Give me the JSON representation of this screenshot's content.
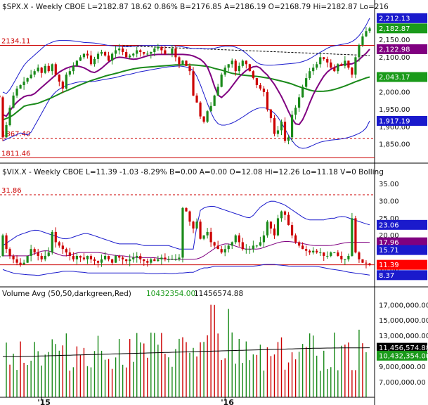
{
  "chart_data": [
    {
      "type": "candlestick",
      "panel": "spx",
      "header": "$SPX.X - Weekly  CBOE  L=2182.87  18.62  0.86%  B=2176.85  A=2186.19  O=2168.79  Hi=2182.87  Lo=216",
      "y_range": [
        1800,
        2230
      ],
      "y_ticks": [
        "2,150.00",
        "2,100.00",
        "2,050.00",
        "2,000.00",
        "1,950.00",
        "1,900.00",
        "1,850.00"
      ],
      "y_tick_values": [
        2150,
        2100,
        2050,
        2000,
        1950,
        1900,
        1850
      ],
      "reference_lines": [
        {
          "label": "2134.11",
          "value": 2134.11,
          "style": "solid",
          "color": "#cc0000"
        },
        {
          "label": "1867.40",
          "value": 1867.4,
          "style": "dashed",
          "color": "#cc0000"
        },
        {
          "label": "1811.46",
          "value": 1811.46,
          "style": "solid",
          "color": "#cc0000"
        }
      ],
      "trendline": {
        "from_week": 34,
        "from_value": 2133,
        "to_week": 104,
        "to_value": 2105,
        "style": "dashed",
        "color": "#000000"
      },
      "value_tags": [
        {
          "label": "2,212.13",
          "value": 2212.13,
          "color": "#1a1acc"
        },
        {
          "label": "2,182.87",
          "value": 2182.87,
          "color": "#1a9a1a"
        },
        {
          "label": "2,122.98",
          "value": 2122.98,
          "color": "#800080"
        },
        {
          "label": "2,043.17",
          "value": 2043.17,
          "color": "#1a9a1a"
        },
        {
          "label": "1,917.19",
          "value": 1917.19,
          "color": "#1a1acc"
        }
      ],
      "closes": [
        1950,
        1965,
        1960,
        1975,
        1990,
        1985,
        1870,
        1905,
        1955,
        1990,
        2010,
        2020,
        2030,
        2040,
        2050,
        2060,
        2070,
        2055,
        2075,
        2060,
        2080,
        2050,
        2030,
        2010,
        2050,
        2060,
        2075,
        2090,
        2100,
        2110,
        2105,
        2080,
        2095,
        2110,
        2115,
        2105,
        2090,
        2110,
        2120,
        2125,
        2115,
        2100,
        2105,
        2110,
        2120,
        2115,
        2110,
        2110,
        2115,
        2125,
        2130,
        2120,
        2110,
        2110,
        2125,
        2100,
        2080,
        2090,
        2075,
        2060,
        1990,
        1970,
        1930,
        1915,
        1945,
        1960,
        1990,
        2015,
        2050,
        2070,
        2080,
        2090,
        2060,
        2075,
        2090,
        2080,
        2060,
        2040,
        2020,
        2010,
        2000,
        1950,
        1925,
        1880,
        1890,
        1915,
        1860,
        1870,
        1935,
        1955,
        1985,
        2015,
        2040,
        2060,
        2070,
        2080,
        2100,
        2095,
        2085,
        2070,
        2060,
        2080,
        2075,
        2090,
        2070,
        2050,
        2100,
        2135,
        2160,
        2175,
        2182.87
      ],
      "sma_green": {
        "name": "",
        "color": "#1a8a1a",
        "values": [
          1920,
          1925,
          1930,
          1940,
          1950,
          1960,
          1963,
          1965,
          1967,
          1972,
          1977,
          1982,
          1988,
          1994,
          2000,
          2005,
          2010,
          2016,
          2021,
          2026,
          2031,
          2035,
          2039,
          2043,
          2047,
          2050,
          2053,
          2056,
          2060,
          2063,
          2066,
          2068,
          2070,
          2071,
          2072,
          2073,
          2074,
          2075,
          2076,
          2077,
          2078,
          2078,
          2078,
          2078,
          2078,
          2077,
          2076,
          2074,
          2072,
          2068,
          2065,
          2062,
          2058,
          2054,
          2052,
          2050,
          2048,
          2047,
          2046,
          2045,
          2043,
          2041,
          2039,
          2036,
          2033,
          2030,
          2027,
          2023,
          2018,
          2014,
          2010,
          2006,
          2003,
          2002,
          2002,
          2003,
          2005,
          2008,
          2012,
          2016,
          2021,
          2026,
          2031,
          2035,
          2040,
          2043.17
        ]
      },
      "sma_purple": {
        "name": "",
        "color": "#800080",
        "values": [
          1935,
          1930,
          1950,
          1965,
          1975,
          1985,
          1990,
          1990,
          1995,
          2005,
          2015,
          2025,
          2035,
          2045,
          2055,
          2062,
          2068,
          2072,
          2075,
          2075,
          2072,
          2068,
          2060,
          2055,
          2060,
          2068,
          2078,
          2088,
          2095,
          2100,
          2100,
          2098,
          2096,
          2094,
          2095,
          2098,
          2102,
          2105,
          2107,
          2108,
          2108,
          2108,
          2108,
          2108,
          2108,
          2108,
          2108,
          2107,
          2105,
          2100,
          2095,
          2085,
          2070,
          2040,
          2005,
          1980,
          1990,
          2000,
          2015,
          2030,
          2045,
          2055,
          2065,
          2070,
          2075,
          2072,
          2060,
          2050,
          2035,
          2020,
          2000,
          1980,
          1955,
          1930,
          1910,
          1905,
          1920,
          1945,
          1975,
          2000,
          2020,
          2040,
          2055,
          2065,
          2070,
          2075,
          2078,
          2080,
          2080,
          2082,
          2090,
          2100,
          2110,
          2122.98
        ]
      },
      "bb_upper": {
        "name": "",
        "color": "#1a1acc",
        "values": [
          2000,
          1995,
          2010,
          2030,
          2050,
          2070,
          2085,
          2095,
          2105,
          2115,
          2125,
          2135,
          2140,
          2145,
          2148,
          2148,
          2148,
          2148,
          2147,
          2146,
          2144,
          2142,
          2142,
          2141,
          2140,
          2138,
          2136,
          2134,
          2133,
          2132,
          2131,
          2130,
          2130,
          2131,
          2132,
          2133,
          2134,
          2134,
          2134,
          2134,
          2134,
          2134,
          2134,
          2134,
          2133,
          2132,
          2130,
          2128,
          2126,
          2125,
          2125,
          2125,
          2124,
          2124,
          2125,
          2128,
          2130,
          2132,
          2132,
          2131,
          2128,
          2122,
          2115,
          2105,
          2095,
          2085,
          2080,
          2078,
          2077,
          2077,
          2078,
          2079,
          2080,
          2081,
          2082,
          2083,
          2085,
          2088,
          2092,
          2098,
          2105,
          2112,
          2118,
          2125,
          2130,
          2133,
          2135,
          2137,
          2139,
          2142,
          2148,
          2158,
          2172,
          2190,
          2212.13
        ]
      },
      "bb_lower": {
        "name": "",
        "color": "#1a1acc",
        "values": [
          1860,
          1865,
          1870,
          1875,
          1880,
          1885,
          1875,
          1880,
          1900,
          1920,
          1940,
          1960,
          1980,
          1995,
          2005,
          2012,
          2018,
          2022,
          2025,
          2028,
          2030,
          2030,
          2030,
          2030,
          2032,
          2034,
          2036,
          2038,
          2040,
          2042,
          2045,
          2048,
          2050,
          2052,
          2055,
          2058,
          2060,
          2062,
          2064,
          2066,
          2068,
          2070,
          2072,
          2073,
          2074,
          2075,
          2074,
          2072,
          2068,
          2060,
          2040,
          2010,
          1980,
          1950,
          1925,
          1910,
          1905,
          1905,
          1908,
          1912,
          1918,
          1925,
          1932,
          1940,
          1947,
          1952,
          1955,
          1955,
          1952,
          1945,
          1935,
          1920,
          1900,
          1880,
          1862,
          1848,
          1840,
          1838,
          1840,
          1845,
          1850,
          1855,
          1858,
          1860,
          1862,
          1863,
          1864,
          1866,
          1868,
          1871,
          1875,
          1880,
          1885,
          1895,
          1917.19
        ]
      }
    },
    {
      "type": "candlestick",
      "panel": "vix",
      "header": "$VIX.X - Weekly  CBOE  L=11.39  -1.03  -8.29%  B=0.00  A=0.00  O=12.08  Hi=12.26  Lo=11.18  V=0  Bolling",
      "y_range": [
        7,
        37
      ],
      "y_ticks": [
        "35.00",
        "30.00",
        "25.00",
        "20.00",
        "15.00",
        "10.00"
      ],
      "y_tick_values": [
        35,
        30,
        25,
        20,
        15,
        10
      ],
      "reference_lines": [
        {
          "label": "31.86",
          "value": 31.86,
          "style": "dashed",
          "color": "#cc0000"
        },
        {
          "label": "",
          "value": 11.39,
          "style": "solid",
          "color": "#cc0000"
        }
      ],
      "value_tags": [
        {
          "label": "23.06",
          "value": 23.06,
          "color": "#1a1acc"
        },
        {
          "label": "17.96",
          "value": 17.96,
          "color": "#800080"
        },
        {
          "label": "15.71",
          "value": 15.71,
          "color": "#1a1acc"
        },
        {
          "label": "11.39",
          "value": 11.39,
          "color": "#ff0000"
        },
        {
          "label": "8.37",
          "value": 8.37,
          "color": "#1a1acc"
        }
      ],
      "closes": [
        13,
        12.5,
        13,
        14,
        13.5,
        14,
        20,
        16,
        14,
        13,
        12,
        11.5,
        12,
        14,
        16,
        15,
        14,
        13,
        14,
        15,
        21,
        18,
        17,
        16,
        15,
        14,
        13,
        14,
        13.5,
        13,
        14,
        13,
        12.5,
        12,
        13,
        14,
        13,
        12,
        14,
        13.5,
        13,
        12.5,
        13,
        13.5,
        14,
        13,
        12.5,
        12,
        13,
        12.5,
        13,
        13.5,
        13,
        13,
        13,
        13,
        13.5,
        28,
        27,
        24,
        22,
        24,
        19,
        20,
        21,
        18,
        17,
        16,
        15,
        16,
        17,
        18,
        20,
        18,
        16,
        16,
        16,
        17,
        17,
        18,
        20,
        24,
        22,
        20,
        25,
        27,
        26,
        23,
        20,
        18,
        17,
        16,
        15.5,
        15,
        15.5,
        15,
        15,
        14,
        14,
        15,
        15,
        14,
        13,
        13,
        14,
        25,
        15,
        13,
        12,
        11.8,
        11.39
      ],
      "bb_upper": {
        "name": "",
        "color": "#1a1acc",
        "values": [
          17,
          18,
          19,
          20,
          20.5,
          21,
          21.5,
          21.5,
          21,
          20.5,
          20,
          19.5,
          19,
          19,
          19.5,
          20,
          20.5,
          20.5,
          20,
          19.5,
          19,
          18.5,
          18,
          17.5,
          17.5,
          17.5,
          17.5,
          17.5,
          17,
          17,
          17,
          17,
          17,
          17,
          16.5,
          16,
          16,
          16,
          16,
          27,
          28,
          28.5,
          28.5,
          28,
          27.5,
          27,
          26.5,
          26,
          25.5,
          25,
          26,
          28,
          29,
          30,
          30,
          29.5,
          29,
          28,
          27,
          26,
          25,
          24.5,
          24.5,
          24.5,
          24.5,
          25,
          25,
          25.5,
          25.5,
          25,
          24.5,
          24,
          23.5,
          23.06
        ]
      },
      "bb_lower": {
        "name": "",
        "color": "#1a1acc",
        "values": [
          10,
          9.5,
          9,
          8.8,
          8.6,
          8.5,
          8.4,
          8.3,
          8.5,
          8.8,
          9,
          9.2,
          9.5,
          9.5,
          9.5,
          9.3,
          9.2,
          9,
          9,
          9,
          9,
          9,
          9,
          9,
          9,
          9,
          9,
          9,
          9,
          8.8,
          8.8,
          8.8,
          9,
          8.8,
          8.8,
          9,
          9,
          9.2,
          9.2,
          10,
          10.5,
          10.5,
          11,
          11,
          11,
          11,
          11,
          11,
          11,
          11,
          11,
          11.2,
          11.5,
          11.5,
          11.5,
          11.3,
          11.2,
          11,
          11,
          11,
          11,
          11,
          11,
          10.8,
          10.5,
          10.2,
          10,
          9.8,
          9.5,
          9.2,
          9,
          8.8,
          8.6,
          8.37
        ]
      },
      "bb_mid": {
        "name": "",
        "color": "#800080",
        "values": [
          14,
          14,
          14,
          14,
          14,
          14,
          14.5,
          15,
          15.5,
          15.5,
          15,
          14.5,
          14,
          14,
          14.5,
          15,
          15,
          15,
          15,
          15,
          14.8,
          14.5,
          14.2,
          14,
          14,
          13.8,
          13.6,
          13.5,
          13.5,
          13.5,
          13.5,
          13.3,
          13.2,
          13,
          13,
          13,
          13,
          13,
          13,
          13.2,
          14,
          15,
          16,
          17,
          17.5,
          17.5,
          17,
          16.5,
          16,
          16,
          16,
          16,
          16.5,
          17,
          17.5,
          18,
          18.2,
          18.2,
          18,
          17.8,
          17.5,
          17.2,
          17,
          17,
          17,
          17,
          17.2,
          17.5,
          17.8,
          18,
          18,
          18,
          18,
          17.96
        ]
      }
    },
    {
      "type": "bar",
      "panel": "volume",
      "header": "Volume Avg (50,50,darkgreen,Red)",
      "header_value_1": "10432354.00",
      "header_value_2": "11456574.88",
      "y_range": [
        5500000,
        17800000
      ],
      "y_ticks": [
        "17,000,000.00",
        "15,000,000.00",
        "13,000,000.00",
        "11,000,000.00",
        "9,000,000.00",
        "7,000,000.00"
      ],
      "y_tick_values": [
        17000000,
        15000000,
        13000000,
        11000000,
        9000000,
        7000000
      ],
      "value_tags": [
        {
          "label": "11,456,574.88",
          "value": 11456574.88,
          "color": "#000000"
        },
        {
          "label": "10,432,354.00",
          "value": 10432354,
          "color": "#1a9a1a"
        }
      ],
      "avg_line": {
        "name": "",
        "color": "#000000",
        "values": [
          10300000,
          10300000,
          10350000,
          10400000,
          10450000,
          10500000,
          10550000,
          10600000,
          10650000,
          10700000,
          10750000,
          10800000,
          10850000,
          10900000,
          10950000,
          11000000,
          11050000,
          11100000,
          11150000,
          11200000,
          11250000,
          11300000,
          11350000,
          11400000,
          11420000,
          11440000,
          11450000,
          11456574.88
        ]
      },
      "up_color": "#1a8a1a",
      "down_color": "#cc0000"
    }
  ],
  "x_axis": {
    "labels": [
      {
        "label": "'15",
        "week": 11
      },
      {
        "label": "'16",
        "week": 63
      }
    ],
    "total_weeks": 105
  }
}
